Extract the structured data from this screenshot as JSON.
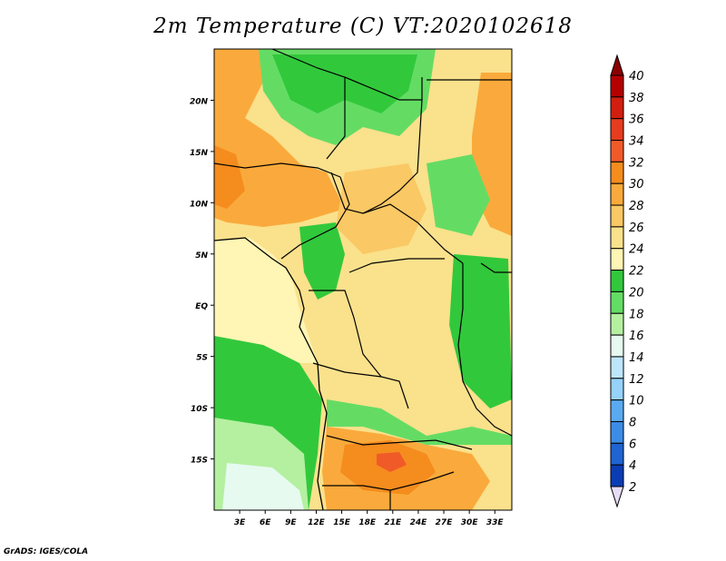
{
  "title": "2m Temperature (C) VT:2020102618",
  "credit": "GrADS: IGES/COLA",
  "map": {
    "lon_range": [
      0,
      35
    ],
    "lat_range": [
      -20,
      25
    ],
    "lat_ticks": [
      {
        "value": 20,
        "label": "20N"
      },
      {
        "value": 15,
        "label": "15N"
      },
      {
        "value": 10,
        "label": "10N"
      },
      {
        "value": 5,
        "label": "5N"
      },
      {
        "value": 0,
        "label": "EQ"
      },
      {
        "value": -5,
        "label": "5S"
      },
      {
        "value": -10,
        "label": "10S"
      },
      {
        "value": -15,
        "label": "15S"
      }
    ],
    "lon_ticks": [
      {
        "value": 3,
        "label": "3E"
      },
      {
        "value": 6,
        "label": "6E"
      },
      {
        "value": 9,
        "label": "9E"
      },
      {
        "value": 12,
        "label": "12E"
      },
      {
        "value": 15,
        "label": "15E"
      },
      {
        "value": 18,
        "label": "18E"
      },
      {
        "value": 21,
        "label": "21E"
      },
      {
        "value": 24,
        "label": "24E"
      },
      {
        "value": 27,
        "label": "27E"
      },
      {
        "value": 30,
        "label": "30E"
      },
      {
        "value": 33,
        "label": "33E"
      }
    ]
  },
  "colorbar": {
    "labels": [
      "40",
      "38",
      "36",
      "34",
      "32",
      "30",
      "28",
      "26",
      "24",
      "22",
      "20",
      "18",
      "16",
      "14",
      "12",
      "10",
      "8",
      "6",
      "4",
      "2"
    ],
    "colors": [
      "#b40000",
      "#d21e10",
      "#e63c1e",
      "#f05a28",
      "#f58c1e",
      "#faaa3c",
      "#fac864",
      "#fae18c",
      "#fff5b4",
      "#32c83c",
      "#64dc64",
      "#b4f0a0",
      "#e6faf0",
      "#bee6fa",
      "#96d2fa",
      "#5aaaf0",
      "#3c8ce6",
      "#1e64d2",
      "#0a3cb4",
      "#0a1464",
      "#e6dcf5"
    ]
  },
  "temperature_fields": [
    {
      "color": "#fae18c",
      "shape": "base"
    },
    {
      "color": "#faaa3c",
      "shape": "sahel-warm"
    },
    {
      "color": "#64dc64",
      "shape": "highlands-cool"
    },
    {
      "color": "#32c83c",
      "shape": "ocean-south"
    },
    {
      "color": "#b4f0a0",
      "shape": "ocean-far-south"
    },
    {
      "color": "#f58c1e",
      "shape": "south-hot"
    },
    {
      "color": "#fff5b4",
      "shape": "gulf"
    }
  ]
}
